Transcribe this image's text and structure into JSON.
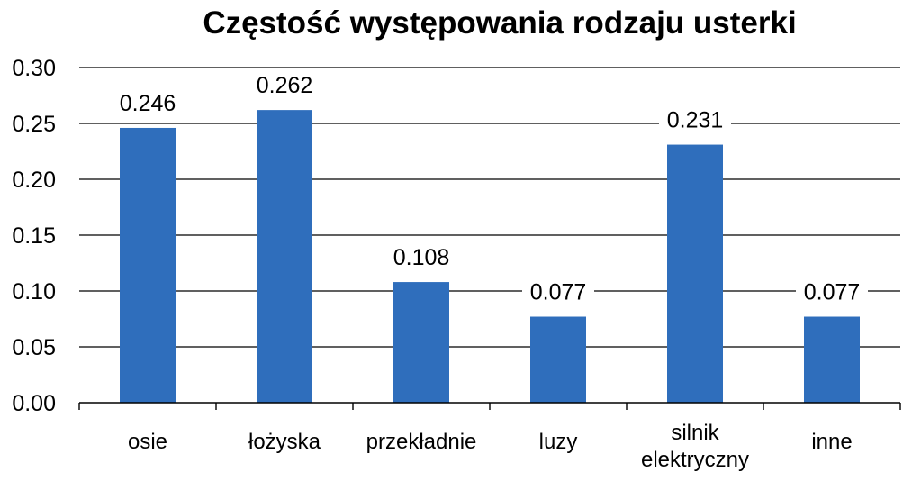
{
  "chart_data": {
    "type": "bar",
    "title": "Częstość występowania rodzaju usterki",
    "xlabel": "",
    "ylabel": "",
    "categories": [
      "osie",
      "łożyska",
      "przekładnie",
      "luzy",
      "silnik elektryczny",
      "inne"
    ],
    "category_lines": [
      [
        "osie"
      ],
      [
        "łożyska"
      ],
      [
        "przekładnie"
      ],
      [
        "luzy"
      ],
      [
        "silnik",
        "elektryczny"
      ],
      [
        "inne"
      ]
    ],
    "values": [
      0.246,
      0.262,
      0.108,
      0.077,
      0.231,
      0.077
    ],
    "data_labels": [
      "0.246",
      "0.262",
      "0.108",
      "0.077",
      "0.231",
      "0.077"
    ],
    "ylim": [
      0,
      0.3
    ],
    "yticks": [
      0.0,
      0.05,
      0.1,
      0.15,
      0.2,
      0.25,
      0.3
    ],
    "ytick_labels": [
      "0.00",
      "0.05",
      "0.10",
      "0.15",
      "0.20",
      "0.25",
      "0.30"
    ],
    "grid": true,
    "legend": "none",
    "bar_color": "#2f6ebc"
  }
}
